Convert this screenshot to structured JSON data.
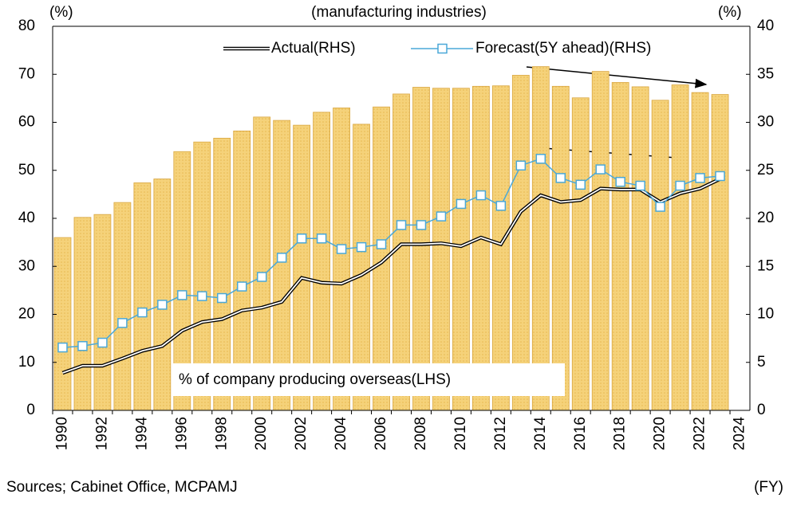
{
  "chart_data": {
    "type": "bar-line",
    "subtitle": "(manufacturing industries)",
    "y_label": "(%)",
    "y2_label": "(%)",
    "source": "Sources; Cabinet Office, MCPAMJ",
    "x_unit": "(FY)",
    "categories": [
      "1990",
      null,
      "1992",
      null,
      "1994",
      null,
      "1996",
      null,
      "1998",
      null,
      "2000",
      null,
      "2002",
      null,
      "2004",
      null,
      "2006",
      null,
      "2008",
      null,
      "2010",
      null,
      "2012",
      null,
      "2014",
      null,
      "2016",
      null,
      "2018",
      null,
      "2020",
      null,
      "2022",
      null,
      "2024"
    ],
    "series": [
      {
        "name": "% of company producing overseas(LHS)",
        "color": "#f5d27a",
        "axis": "y",
        "values": [
          36,
          40.2,
          40.8,
          43.3,
          47.4,
          48.2,
          53.9,
          55.9,
          56.7,
          58.2,
          61.1,
          60.4,
          59.4,
          62.1,
          63,
          59.6,
          63.2,
          65.9,
          67.3,
          67.1,
          67.1,
          67.5,
          67.6,
          69.8,
          71.6,
          67.5,
          65.1,
          70.6,
          68.3,
          67.4,
          64.6,
          67.8,
          66.2,
          65.8,
          null
        ]
      },
      {
        "name": "Actual(RHS)",
        "color": "#000000",
        "axis": "y2",
        "values": [
          3.9,
          4.65,
          4.65,
          5.4,
          6.2,
          6.7,
          8.3,
          9.2,
          9.5,
          10.4,
          10.7,
          11.3,
          13.8,
          13.3,
          13.2,
          14.1,
          15.4,
          17.3,
          17.3,
          17.4,
          17.1,
          18.0,
          17.3,
          20.7,
          22.4,
          21.7,
          21.9,
          23.1,
          23.0,
          23.0,
          21.7,
          22.6,
          23.1,
          24.1,
          null
        ]
      },
      {
        "name": "Forecast(5Y ahead)(RHS)",
        "color": "#4aa8d8",
        "axis": "y2",
        "values": [
          6.55,
          6.7,
          7.05,
          9.1,
          10.2,
          11.0,
          12.0,
          11.9,
          11.7,
          12.9,
          13.9,
          15.9,
          17.9,
          17.9,
          16.8,
          17.0,
          17.3,
          19.3,
          19.3,
          20.2,
          21.5,
          22.4,
          21.3,
          25.5,
          26.2,
          24.2,
          23.5,
          25.1,
          23.8,
          23.4,
          21.2,
          23.4,
          24.2,
          24.4,
          null
        ]
      }
    ],
    "ylim": [
      0,
      80
    ],
    "yticks": [
      0,
      10,
      20,
      30,
      40,
      50,
      60,
      70,
      80
    ],
    "y2lim": [
      0,
      40
    ],
    "y2ticks": [
      0,
      5,
      10,
      15,
      20,
      25,
      30,
      35,
      40
    ],
    "grid": false
  }
}
